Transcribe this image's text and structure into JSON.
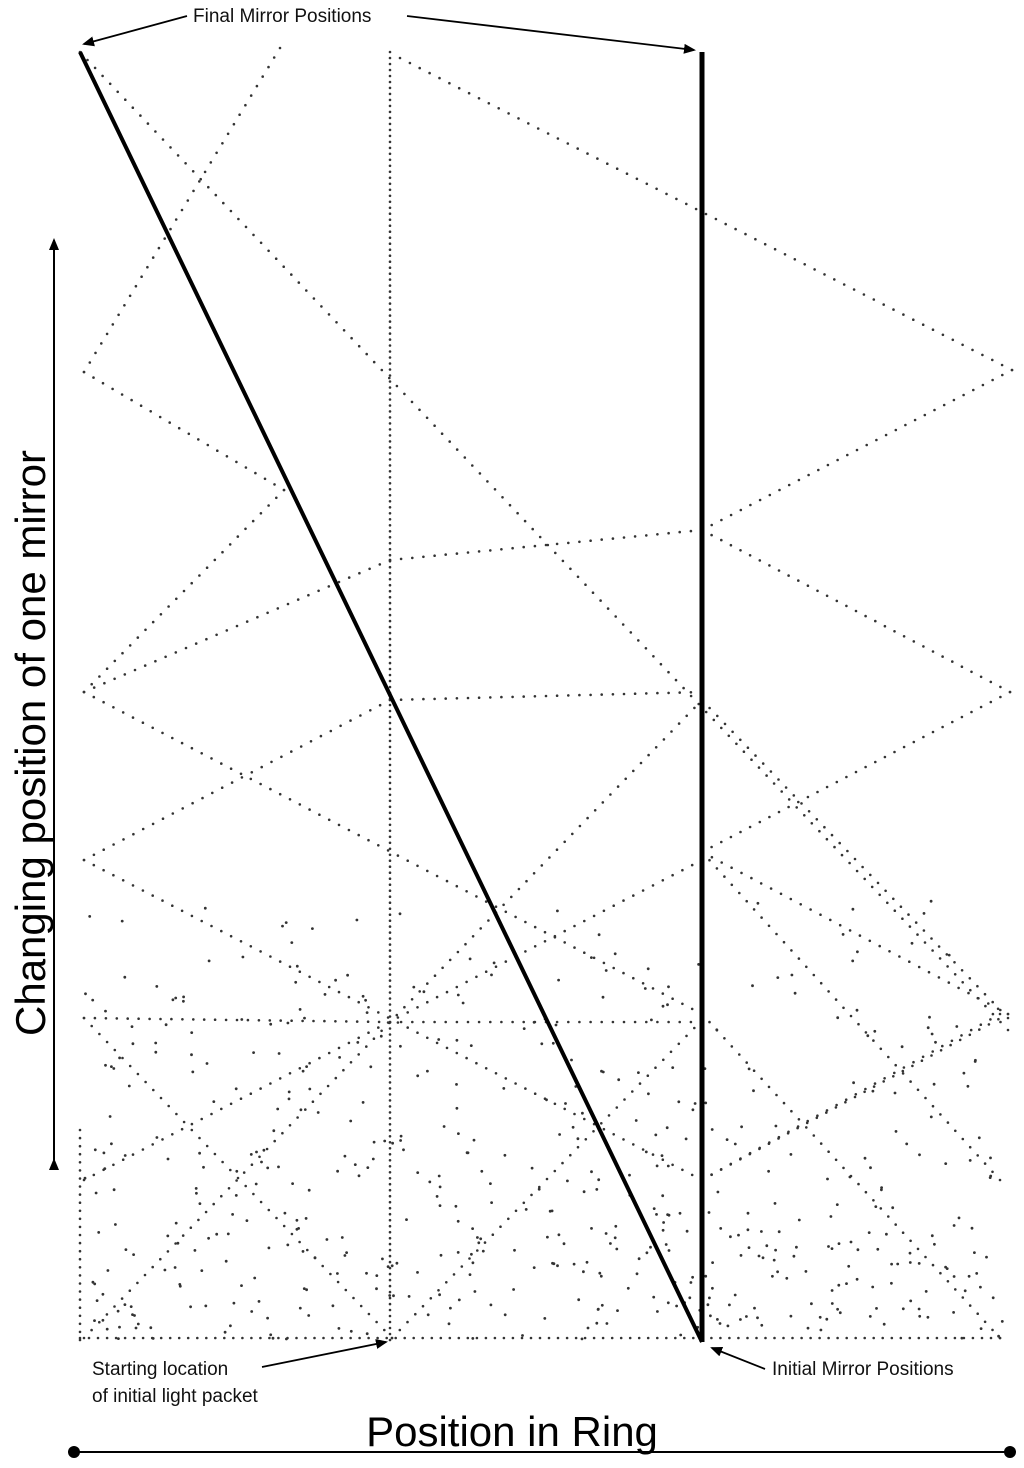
{
  "annotations": {
    "final_mirror_positions": "Final Mirror Positions",
    "initial_mirror_positions": "Initial Mirror Positions",
    "starting_location_line1": "Starting location",
    "starting_location_line2": "of initial light packet"
  },
  "axes": {
    "x_label": "Position in Ring",
    "y_label": "Changing position of one mirror"
  },
  "colors": {
    "ink": "#000000",
    "dots": "#333333",
    "background": "#ffffff"
  }
}
